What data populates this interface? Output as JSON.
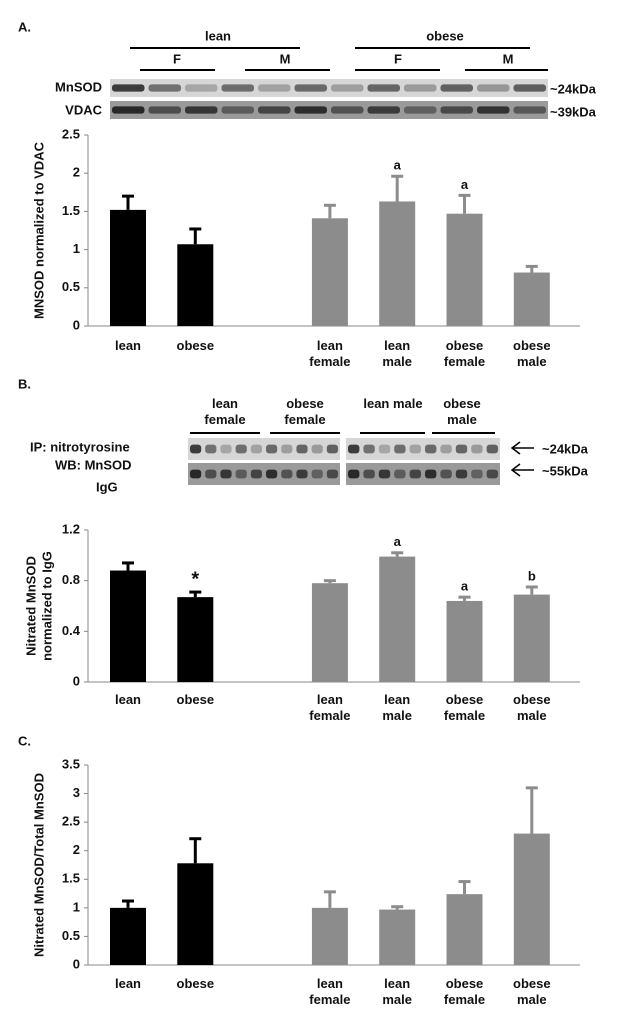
{
  "chart_data": [
    {
      "type": "bar",
      "panel_label": "A.",
      "blot": {
        "groups": [
          "lean",
          "obese"
        ],
        "sexes": [
          "F",
          "M",
          "F",
          "M"
        ],
        "rows": [
          "MnSOD",
          "VDAC"
        ],
        "sizes": [
          "~24kDa",
          "~39kDa"
        ]
      },
      "ylabel": [
        "MNSOD normalized  to VDAC"
      ],
      "categories": [
        "lean",
        "obese",
        null,
        "lean female",
        "lean male",
        "obese female",
        "obese male"
      ],
      "values": [
        1.52,
        1.07,
        null,
        1.41,
        1.63,
        1.47,
        0.7
      ],
      "errors": [
        0.18,
        0.2,
        null,
        0.17,
        0.33,
        0.24,
        0.08
      ],
      "annotations": [
        null,
        null,
        null,
        null,
        "a",
        "a",
        null
      ],
      "colors": [
        "#000000",
        "#000000",
        null,
        "#8c8c8c",
        "#8c8c8c",
        "#8c8c8c",
        "#8c8c8c"
      ],
      "ylim": [
        0,
        2.5
      ],
      "yticks": [
        0,
        0.5,
        1,
        1.5,
        2,
        2.5
      ]
    },
    {
      "type": "bar",
      "panel_label": "B.",
      "blot": {
        "groups": [
          "lean female",
          "obese female",
          "lean male",
          "obese male"
        ],
        "rows": [
          "IP: nitrotyrosine",
          "WB: MnSOD",
          "IgG"
        ],
        "sizes": [
          "~24kDa",
          "~55kDa"
        ]
      },
      "ylabel": [
        "Nitrated MnSOD",
        "normalized to IgG"
      ],
      "categories": [
        "lean",
        "obese",
        null,
        "lean female",
        "lean male",
        "obese female",
        "obese male"
      ],
      "values": [
        0.88,
        0.67,
        null,
        0.78,
        0.99,
        0.64,
        0.69
      ],
      "errors": [
        0.06,
        0.04,
        null,
        0.02,
        0.03,
        0.03,
        0.06
      ],
      "annotations": [
        null,
        "*",
        null,
        null,
        "a",
        "a",
        "b"
      ],
      "colors": [
        "#000000",
        "#000000",
        null,
        "#8c8c8c",
        "#8c8c8c",
        "#8c8c8c",
        "#8c8c8c"
      ],
      "ylim": [
        0,
        1.2
      ],
      "yticks": [
        0,
        0.4,
        0.8,
        1.2
      ]
    },
    {
      "type": "bar",
      "panel_label": "C.",
      "ylabel": [
        "Nitrated MnSOD/Total MnSOD"
      ],
      "categories": [
        "lean",
        "obese",
        null,
        "lean female",
        "lean male",
        "obese female",
        "obese male"
      ],
      "values": [
        1.0,
        1.78,
        null,
        1.0,
        0.97,
        1.24,
        2.3
      ],
      "errors": [
        0.12,
        0.43,
        null,
        0.28,
        0.05,
        0.22,
        0.8
      ],
      "annotations": [
        null,
        null,
        null,
        null,
        null,
        null,
        null
      ],
      "colors": [
        "#000000",
        "#000000",
        null,
        "#8c8c8c",
        "#8c8c8c",
        "#8c8c8c",
        "#8c8c8c"
      ],
      "ylim": [
        0,
        3.5
      ],
      "yticks": [
        0,
        0.5,
        1,
        1.5,
        2,
        2.5,
        3,
        3.5
      ]
    }
  ]
}
